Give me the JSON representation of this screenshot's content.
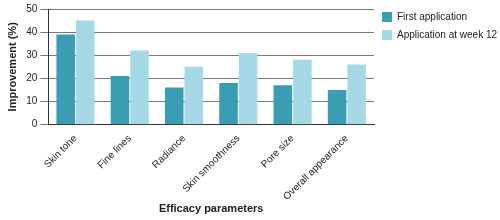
{
  "chart_data": {
    "type": "bar",
    "x_label": "Efficacy parameters",
    "y_label": "Improvement (%)",
    "categories": [
      "Skin tone",
      "Fine lines",
      "Radiance",
      "Skin smoothness",
      "Pore size",
      "Overall appearance"
    ],
    "series": [
      {
        "name": "First application",
        "color": "#3a9db3",
        "values": [
          39,
          21,
          16,
          18,
          17,
          15
        ]
      },
      {
        "name": "Application at week 12",
        "color": "#a6d9e6",
        "values": [
          45,
          32,
          25,
          31,
          28,
          26
        ]
      }
    ],
    "ylim": [
      0,
      50
    ],
    "yticks": [
      0,
      10,
      20,
      30,
      40,
      50
    ],
    "grid": true,
    "legend": "right"
  }
}
